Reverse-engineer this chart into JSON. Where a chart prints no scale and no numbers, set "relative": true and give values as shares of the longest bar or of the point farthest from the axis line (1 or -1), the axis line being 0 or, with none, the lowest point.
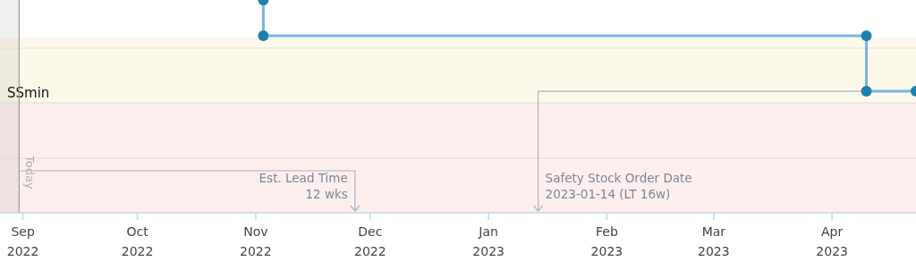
{
  "chart_data": {
    "type": "line",
    "relative": true,
    "xlim": [
      "2022-08-26",
      "2023-04-23"
    ],
    "xticks": [
      {
        "value": "2022-09-01",
        "label": "Sep 2022"
      },
      {
        "value": "2022-10-01",
        "label": "Oct 2022"
      },
      {
        "value": "2022-11-01",
        "label": "Nov 2022"
      },
      {
        "value": "2022-12-01",
        "label": "Dec 2022"
      },
      {
        "value": "2023-01-01",
        "label": "Jan 2023"
      },
      {
        "value": "2023-02-01",
        "label": "Feb 2023"
      },
      {
        "value": "2023-03-01",
        "label": "Mar 2023"
      },
      {
        "value": "2023-04-01",
        "label": "Apr 2023"
      }
    ],
    "series": [
      {
        "color": "#7ab3ea",
        "x": [
          "2022-11-03",
          "2022-11-03",
          "2023-04-10",
          "2023-04-10",
          "2023-04-23"
        ],
        "values": [
          1,
          0.832,
          0.832,
          0.571,
          0.571
        ]
      }
    ],
    "marker": "circle",
    "bands": [
      {
        "axis": "y",
        "from": 0.517,
        "to": 0.824,
        "color": "#fdf9ea"
      },
      {
        "axis": "y",
        "from": 0,
        "to": 0.517,
        "color": "#fdeeee"
      },
      {
        "axis": "x",
        "from": "2022-08-26",
        "to": "2022-08-31",
        "color": "#8a8a8a"
      }
    ],
    "ref_lines": [
      {
        "axis": "y",
        "value": 0.773,
        "label": null,
        "color": "#e6e0d6"
      },
      {
        "axis": "y",
        "value": 0.517,
        "label": "SSmin",
        "color": "#e6d8d4"
      },
      {
        "axis": "y",
        "value": 0.256,
        "label": null,
        "color": "#e6d8d4"
      },
      {
        "axis": "x",
        "value": "2022-08-31",
        "label": "Today",
        "color": "#9a9a9a"
      },
      {
        "axis": "x",
        "value": "2022-11-27",
        "label": "Est. Lead Time\n12 wks",
        "color": "#a9b4c4"
      },
      {
        "axis": "x",
        "value": "2023-01-14",
        "label": "Safety Stock Order Date\n2023-01-14 (LT 16w)",
        "color": "#a9b4c4"
      }
    ]
  }
}
